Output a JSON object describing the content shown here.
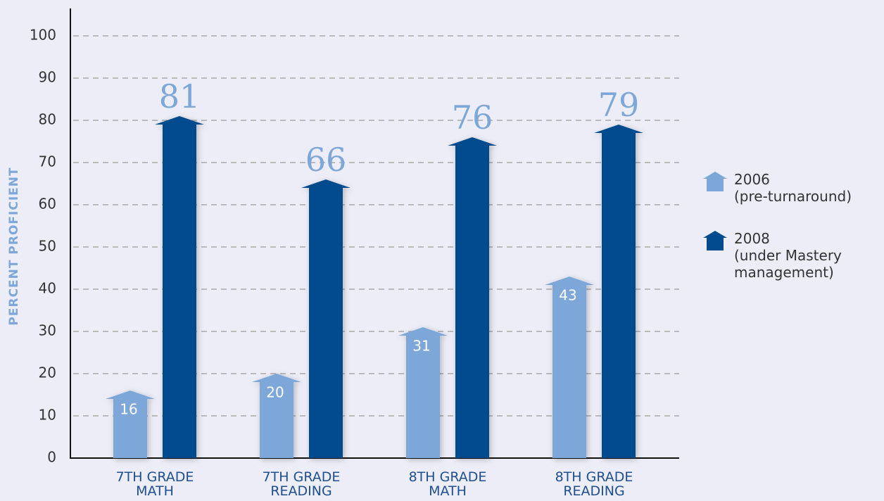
{
  "chart_data": {
    "type": "bar",
    "y_label": "PERCENT PROFICIENT",
    "categories": [
      "7TH GRADE MATH",
      "7TH GRADE READING",
      "8TH GRADE MATH",
      "8TH GRADE READING"
    ],
    "series": [
      {
        "name": "2006 (pre-turnaround)",
        "color": "#7da7d9",
        "values": [
          16,
          20,
          31,
          43
        ]
      },
      {
        "name": "2008 (under Mastery management)",
        "color": "#004b8d",
        "values": [
          81,
          66,
          76,
          79
        ]
      }
    ],
    "ylim": [
      0,
      100
    ],
    "yticks": [
      0,
      10,
      20,
      30,
      40,
      50,
      60,
      70,
      80,
      90,
      100
    ],
    "grid": true
  }
}
